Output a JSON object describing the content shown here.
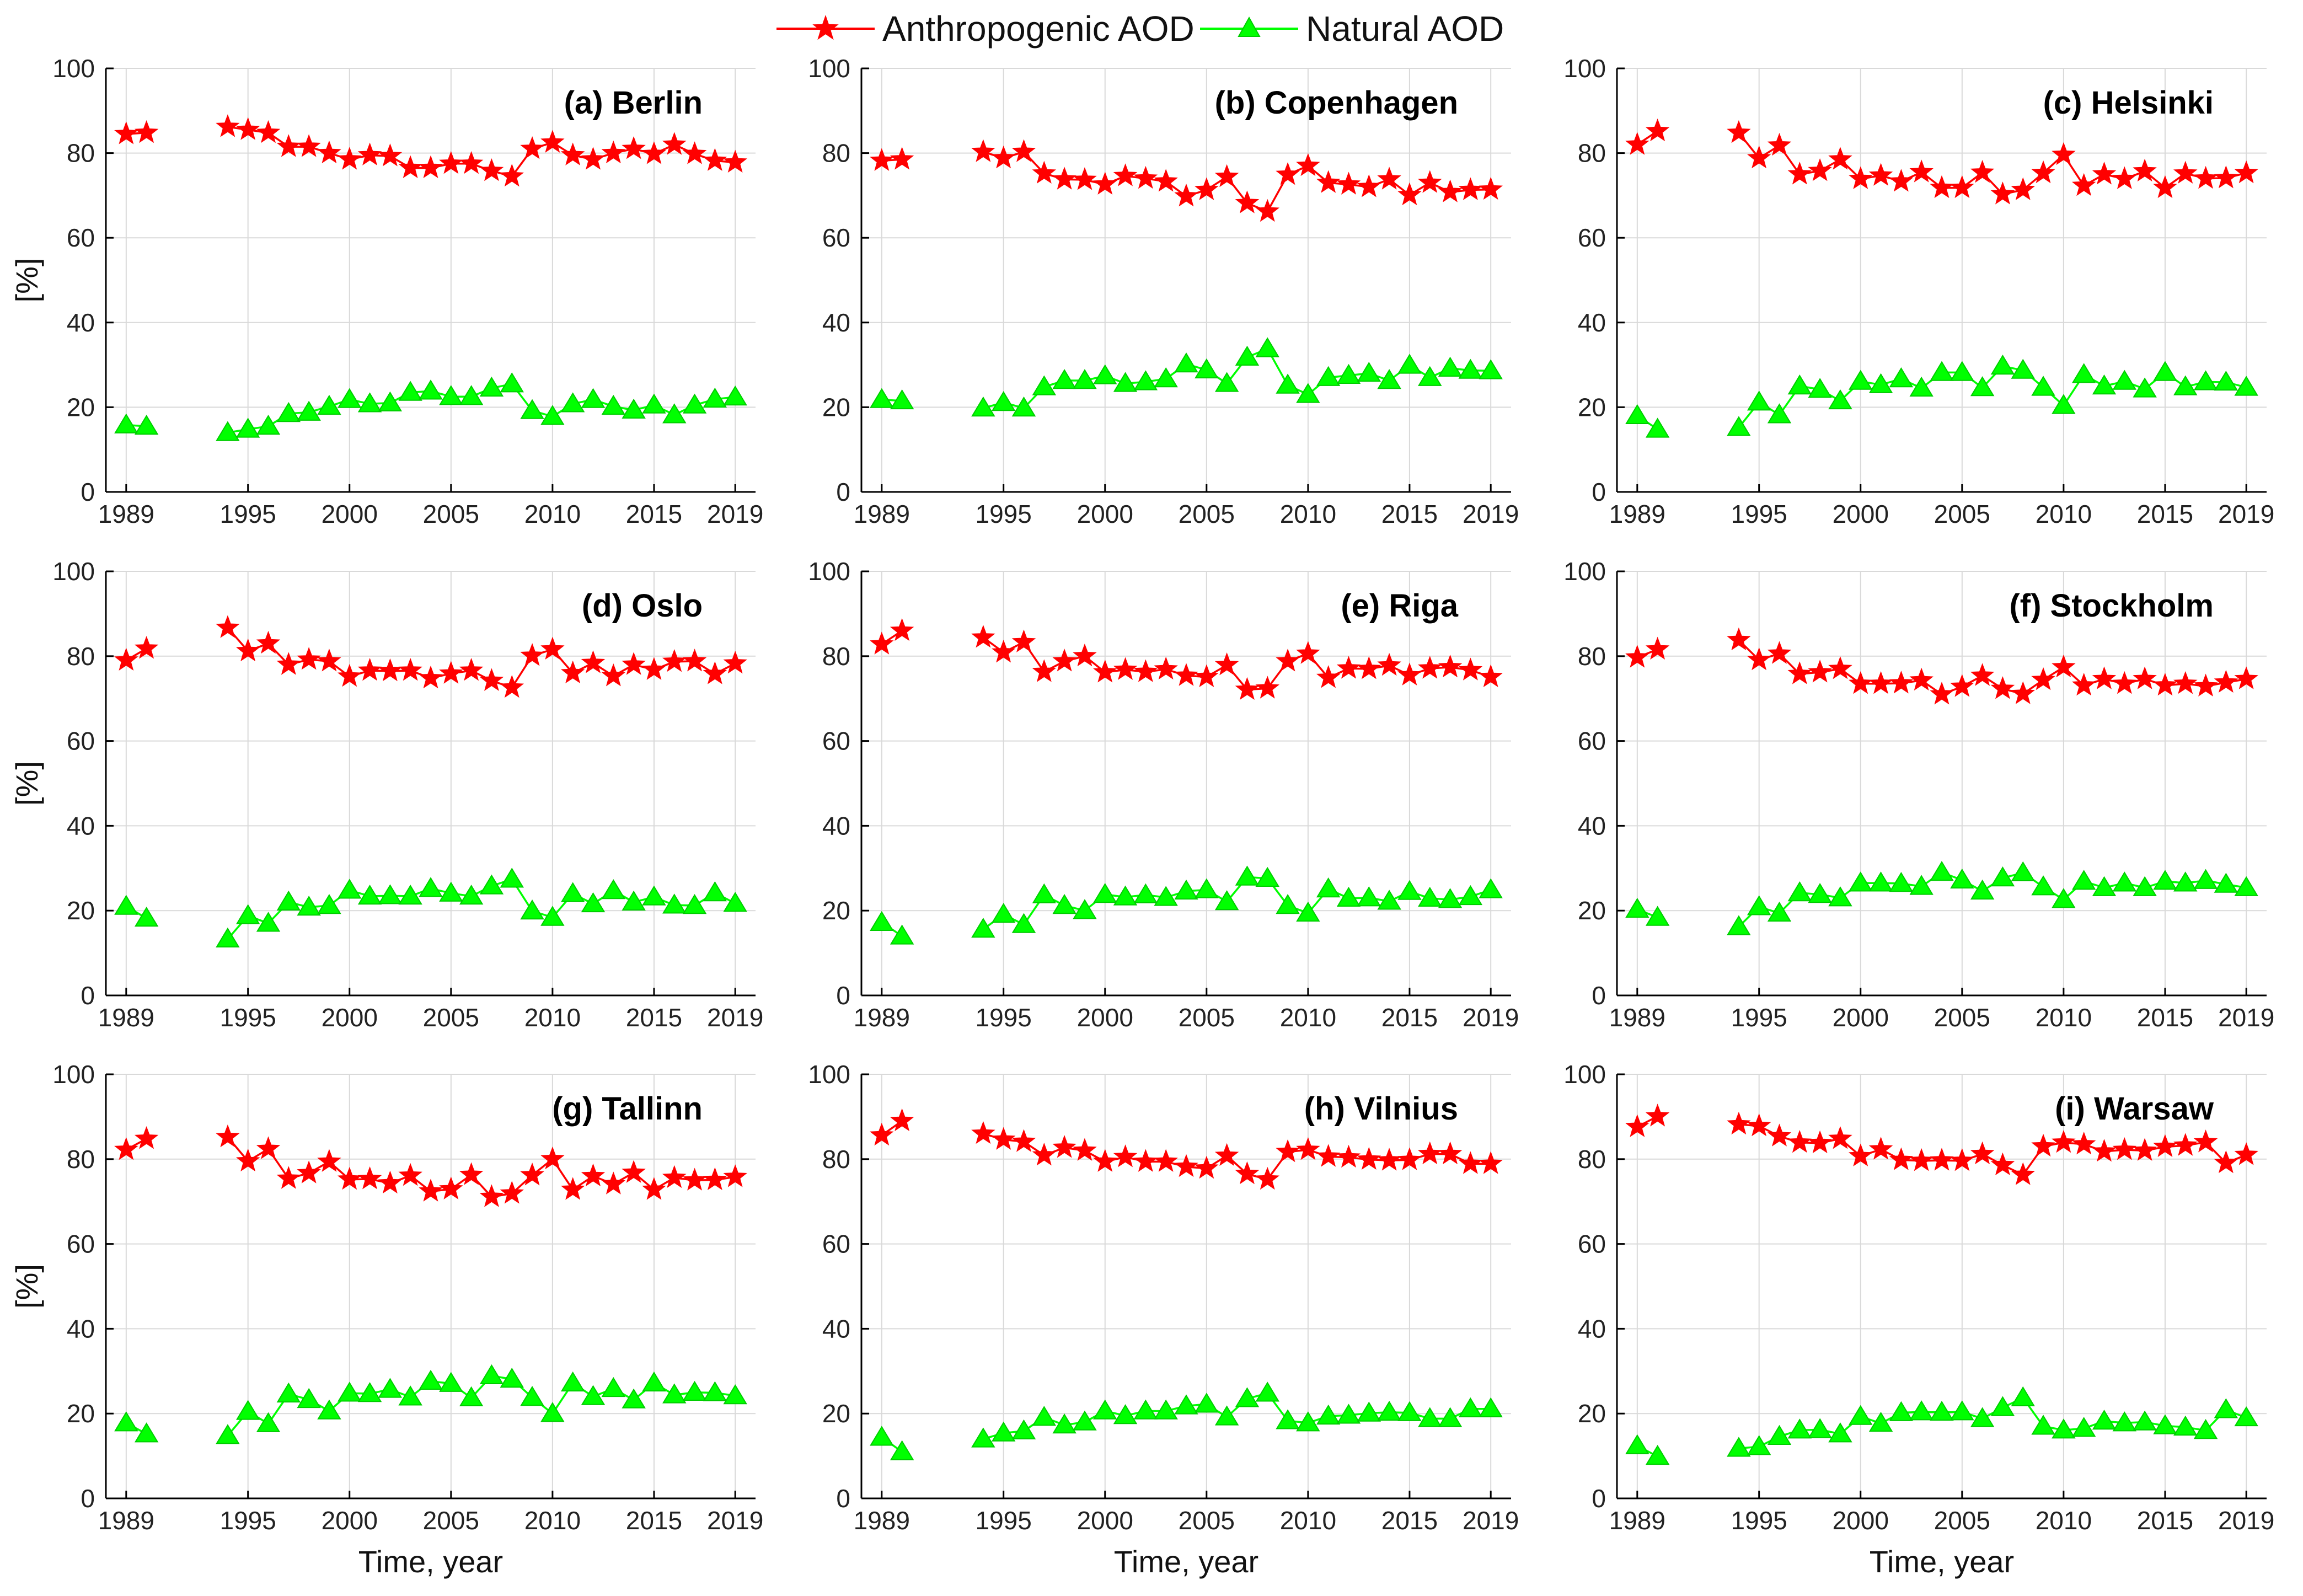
{
  "legend": {
    "anthro_label": "Anthropogenic AOD",
    "natural_label": "Natural AOD",
    "placement": "top-center"
  },
  "colors": {
    "anthro": "#ff0000",
    "natural": "#00ff00",
    "grid": "#d9d9d9",
    "axis": "#000000"
  },
  "chart_data": [
    {
      "type": "line",
      "title": "(a) Berlin",
      "xlabel": "",
      "ylabel": "[%]",
      "ylim": [
        0,
        100
      ],
      "years": [
        1989,
        1990,
        1994,
        1995,
        1996,
        1997,
        1998,
        1999,
        2000,
        2001,
        2002,
        2003,
        2004,
        2005,
        2006,
        2007,
        2008,
        2009,
        2010,
        2011,
        2012,
        2013,
        2014,
        2015,
        2016,
        2017,
        2018,
        2019
      ],
      "series": [
        {
          "name": "Anthropogenic AOD",
          "values": [
            84.5,
            84.8,
            86.2,
            85.5,
            84.8,
            81.5,
            81.5,
            80.0,
            78.5,
            79.5,
            79.3,
            76.5,
            76.5,
            77.5,
            77.5,
            75.8,
            74.5,
            81.0,
            82.5,
            79.5,
            78.5,
            80.0,
            81.0,
            79.8,
            82.0,
            79.8,
            78.2,
            77.8
          ]
        },
        {
          "name": "Natural AOD",
          "values": [
            15.8,
            15.5,
            14.0,
            14.8,
            15.5,
            18.5,
            18.8,
            20.2,
            21.8,
            20.8,
            21.0,
            23.5,
            23.8,
            22.5,
            22.5,
            24.5,
            25.5,
            19.2,
            17.8,
            20.8,
            21.8,
            20.2,
            19.3,
            20.5,
            18.2,
            20.5,
            21.9,
            22.4
          ]
        }
      ]
    },
    {
      "type": "line",
      "title": "(b) Copenhagen",
      "xlabel": "",
      "ylabel": "",
      "ylim": [
        0,
        100
      ],
      "years": [
        1989,
        1990,
        1994,
        1995,
        1996,
        1997,
        1998,
        1999,
        2000,
        2001,
        2002,
        2003,
        2004,
        2005,
        2006,
        2007,
        2008,
        2009,
        2010,
        2011,
        2012,
        2013,
        2014,
        2015,
        2016,
        2017,
        2018,
        2019
      ],
      "series": [
        {
          "name": "Anthropogenic AOD",
          "values": [
            78.2,
            78.5,
            80.3,
            78.8,
            80.3,
            75.2,
            73.8,
            73.7,
            72.6,
            74.6,
            74.0,
            73.3,
            69.8,
            71.3,
            74.4,
            68.2,
            66.2,
            74.9,
            77.0,
            73.0,
            72.6,
            72.0,
            73.8,
            70.1,
            73.0,
            70.8,
            71.3,
            71.4
          ]
        },
        {
          "name": "Natural AOD",
          "values": [
            21.8,
            21.5,
            19.8,
            21.1,
            19.8,
            24.8,
            26.3,
            26.3,
            27.4,
            25.6,
            26.0,
            26.7,
            30.2,
            28.8,
            25.6,
            31.8,
            33.8,
            25.2,
            23.0,
            27.0,
            27.5,
            28.0,
            26.3,
            29.9,
            27.0,
            29.2,
            28.7,
            28.6
          ]
        }
      ]
    },
    {
      "type": "line",
      "title": "(c) Helsinki",
      "xlabel": "",
      "ylabel": "",
      "ylim": [
        0,
        100
      ],
      "years": [
        1989,
        1990,
        1994,
        1995,
        1996,
        1997,
        1998,
        1999,
        2000,
        2001,
        2002,
        2003,
        2004,
        2005,
        2006,
        2007,
        2008,
        2009,
        2010,
        2011,
        2012,
        2013,
        2014,
        2015,
        2016,
        2017,
        2018,
        2019
      ],
      "series": [
        {
          "name": "Anthropogenic AOD",
          "values": [
            82.0,
            85.2,
            84.8,
            78.8,
            81.8,
            75.0,
            75.8,
            78.5,
            73.9,
            74.7,
            73.3,
            75.5,
            71.8,
            71.8,
            75.4,
            70.3,
            71.3,
            75.3,
            79.6,
            72.3,
            75.0,
            73.9,
            75.7,
            71.8,
            75.2,
            74.0,
            74.1,
            75.3
          ]
        },
        {
          "name": "Natural AOD",
          "values": [
            18.0,
            14.8,
            15.2,
            21.2,
            18.2,
            25.0,
            24.2,
            21.5,
            26.1,
            25.3,
            26.7,
            24.5,
            28.2,
            28.2,
            24.6,
            29.7,
            28.7,
            24.7,
            20.4,
            27.7,
            25.0,
            26.1,
            24.3,
            28.2,
            24.8,
            26.0,
            25.9,
            24.7
          ]
        }
      ]
    },
    {
      "type": "line",
      "title": "(d) Oslo",
      "xlabel": "",
      "ylabel": "[%]",
      "ylim": [
        0,
        100
      ],
      "years": [
        1989,
        1990,
        1994,
        1995,
        1996,
        1997,
        1998,
        1999,
        2000,
        2001,
        2002,
        2003,
        2004,
        2005,
        2006,
        2007,
        2008,
        2009,
        2010,
        2011,
        2012,
        2013,
        2014,
        2015,
        2016,
        2017,
        2018,
        2019
      ],
      "series": [
        {
          "name": "Anthropogenic AOD",
          "values": [
            79.0,
            81.8,
            86.7,
            81.2,
            83.0,
            78.0,
            79.2,
            78.8,
            75.2,
            76.6,
            76.5,
            76.6,
            74.8,
            75.9,
            76.6,
            74.2,
            72.6,
            80.1,
            81.6,
            76.0,
            78.4,
            75.3,
            78.0,
            76.8,
            78.7,
            78.8,
            75.8,
            78.3
          ]
        },
        {
          "name": "Natural AOD",
          "values": [
            21.0,
            18.2,
            13.3,
            18.8,
            17.0,
            22.0,
            20.8,
            21.2,
            24.8,
            23.4,
            23.5,
            23.4,
            25.2,
            24.1,
            23.4,
            25.8,
            27.4,
            19.9,
            18.4,
            24.0,
            21.6,
            24.7,
            22.0,
            23.2,
            21.3,
            21.2,
            24.2,
            21.7
          ]
        }
      ]
    },
    {
      "type": "line",
      "title": "(e) Riga",
      "xlabel": "",
      "ylabel": "",
      "ylim": [
        0,
        100
      ],
      "years": [
        1989,
        1990,
        1994,
        1995,
        1996,
        1997,
        1998,
        1999,
        2000,
        2001,
        2002,
        2003,
        2004,
        2005,
        2006,
        2007,
        2008,
        2009,
        2010,
        2011,
        2012,
        2013,
        2014,
        2015,
        2016,
        2017,
        2018,
        2019
      ],
      "series": [
        {
          "name": "Anthropogenic AOD",
          "values": [
            82.8,
            86.0,
            84.4,
            80.9,
            83.3,
            76.3,
            78.8,
            80.0,
            76.2,
            76.8,
            76.3,
            76.9,
            75.4,
            75.1,
            77.9,
            72.1,
            72.4,
            78.8,
            80.6,
            74.9,
            77.1,
            77.0,
            77.8,
            75.5,
            77.1,
            77.4,
            76.7,
            75.1
          ]
        },
        {
          "name": "Natural AOD",
          "values": [
            17.2,
            14.0,
            15.6,
            19.1,
            16.7,
            23.7,
            21.2,
            20.0,
            23.8,
            23.2,
            23.7,
            23.1,
            24.6,
            24.9,
            22.1,
            27.9,
            27.6,
            21.2,
            19.4,
            25.1,
            22.9,
            23.0,
            22.2,
            24.5,
            22.9,
            22.6,
            23.3,
            24.9
          ]
        }
      ]
    },
    {
      "type": "line",
      "title": "(f) Stockholm",
      "xlabel": "",
      "ylabel": "",
      "ylim": [
        0,
        100
      ],
      "years": [
        1989,
        1990,
        1994,
        1995,
        1996,
        1997,
        1998,
        1999,
        2000,
        2001,
        2002,
        2003,
        2004,
        2005,
        2006,
        2007,
        2008,
        2009,
        2010,
        2011,
        2012,
        2013,
        2014,
        2015,
        2016,
        2017,
        2018,
        2019
      ],
      "series": [
        {
          "name": "Anthropogenic AOD",
          "values": [
            79.7,
            81.6,
            83.8,
            79.1,
            80.6,
            75.8,
            76.2,
            77.0,
            73.5,
            73.5,
            73.6,
            74.3,
            71.0,
            72.8,
            75.4,
            72.3,
            71.1,
            74.4,
            77.4,
            73.1,
            74.6,
            73.5,
            74.6,
            73.1,
            73.5,
            72.9,
            73.8,
            74.6
          ]
        },
        {
          "name": "Natural AOD",
          "values": [
            20.3,
            18.4,
            16.2,
            20.9,
            19.4,
            24.2,
            23.8,
            23.0,
            26.5,
            26.5,
            26.4,
            25.7,
            29.0,
            27.2,
            24.6,
            27.7,
            28.9,
            25.6,
            22.6,
            26.9,
            25.4,
            26.5,
            25.4,
            26.9,
            26.5,
            27.1,
            26.2,
            25.4
          ]
        }
      ]
    },
    {
      "type": "line",
      "title": "(g) Tallinn",
      "xlabel": "Time, year",
      "ylabel": "[%]",
      "ylim": [
        0,
        100
      ],
      "years": [
        1989,
        1990,
        1994,
        1995,
        1996,
        1997,
        1998,
        1999,
        2000,
        2001,
        2002,
        2003,
        2004,
        2005,
        2006,
        2007,
        2008,
        2009,
        2010,
        2011,
        2012,
        2013,
        2014,
        2015,
        2016,
        2017,
        2018,
        2019
      ],
      "series": [
        {
          "name": "Anthropogenic AOD",
          "values": [
            82.2,
            84.8,
            85.2,
            79.5,
            82.4,
            75.4,
            76.7,
            79.4,
            75.2,
            75.3,
            74.3,
            76.1,
            72.4,
            72.9,
            76.3,
            71.1,
            71.9,
            76.2,
            80.0,
            72.8,
            76.0,
            74.1,
            76.8,
            72.8,
            75.6,
            75.0,
            75.1,
            75.8
          ]
        },
        {
          "name": "Natural AOD",
          "values": [
            17.8,
            15.2,
            14.8,
            20.5,
            17.6,
            24.6,
            23.3,
            20.6,
            24.8,
            24.7,
            25.7,
            23.9,
            27.6,
            27.1,
            23.7,
            28.9,
            28.1,
            23.8,
            20.0,
            27.2,
            24.0,
            25.9,
            23.2,
            27.2,
            24.4,
            25.0,
            24.9,
            24.2
          ]
        }
      ]
    },
    {
      "type": "line",
      "title": "(h) Vilnius",
      "xlabel": "Time, year",
      "ylabel": "",
      "ylim": [
        0,
        100
      ],
      "years": [
        1989,
        1990,
        1994,
        1995,
        1996,
        1997,
        1998,
        1999,
        2000,
        2001,
        2002,
        2003,
        2004,
        2005,
        2006,
        2007,
        2008,
        2009,
        2010,
        2011,
        2012,
        2013,
        2014,
        2015,
        2016,
        2017,
        2018,
        2019
      ],
      "series": [
        {
          "name": "Anthropogenic AOD",
          "values": [
            85.6,
            89.0,
            86.0,
            84.6,
            84.1,
            80.9,
            82.7,
            82.0,
            79.4,
            80.5,
            79.4,
            79.4,
            78.2,
            77.8,
            80.8,
            76.5,
            75.2,
            81.7,
            82.2,
            80.6,
            80.4,
            79.9,
            79.7,
            79.8,
            81.2,
            81.2,
            78.9,
            78.9
          ]
        },
        {
          "name": "Natural AOD",
          "values": [
            14.4,
            11.0,
            14.0,
            15.4,
            15.9,
            19.1,
            17.3,
            18.0,
            20.6,
            19.5,
            20.6,
            20.6,
            21.8,
            22.2,
            19.2,
            23.5,
            24.8,
            18.3,
            17.8,
            19.4,
            19.6,
            20.1,
            20.3,
            20.2,
            18.8,
            18.8,
            21.1,
            21.1
          ]
        }
      ]
    },
    {
      "type": "line",
      "title": "(i) Warsaw",
      "xlabel": "Time, year",
      "ylabel": "",
      "ylim": [
        0,
        100
      ],
      "years": [
        1989,
        1990,
        1994,
        1995,
        1996,
        1997,
        1998,
        1999,
        2000,
        2001,
        2002,
        2003,
        2004,
        2005,
        2006,
        2007,
        2008,
        2009,
        2010,
        2011,
        2012,
        2013,
        2014,
        2015,
        2016,
        2017,
        2018,
        2019
      ],
      "series": [
        {
          "name": "Anthropogenic AOD",
          "values": [
            87.6,
            90.1,
            88.2,
            87.8,
            85.4,
            83.9,
            83.8,
            84.8,
            80.7,
            82.3,
            79.8,
            79.6,
            79.7,
            79.6,
            81.2,
            78.6,
            76.3,
            83.0,
            83.9,
            83.5,
            81.8,
            82.2,
            82.0,
            82.9,
            83.2,
            84.0,
            79.1,
            81.0
          ]
        },
        {
          "name": "Natural AOD",
          "values": [
            12.4,
            9.9,
            11.8,
            12.2,
            14.6,
            16.1,
            16.2,
            15.2,
            19.3,
            17.7,
            20.2,
            20.4,
            20.3,
            20.4,
            18.8,
            21.4,
            23.7,
            17.0,
            16.1,
            16.5,
            18.2,
            17.8,
            18.0,
            17.1,
            16.8,
            16.0,
            20.9,
            19.0
          ]
        }
      ]
    }
  ]
}
